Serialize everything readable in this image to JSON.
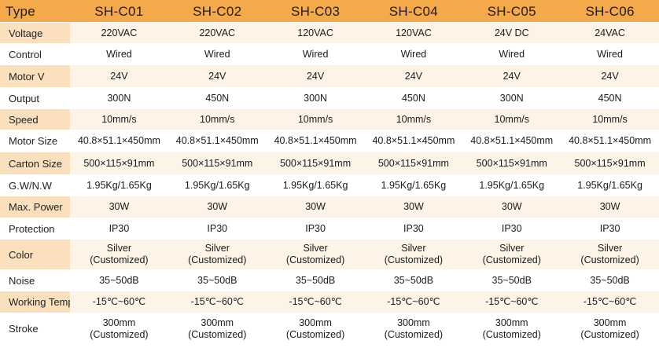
{
  "header": {
    "label": "Type",
    "models": [
      "SH-C01",
      "SH-C02",
      "SH-C03",
      "SH-C04",
      "SH-C05",
      "SH-C06"
    ]
  },
  "rows": [
    {
      "label": "Voltage",
      "values": [
        [
          "220VAC"
        ],
        [
          "220VAC"
        ],
        [
          "120VAC"
        ],
        [
          "120VAC"
        ],
        [
          "24V DC"
        ],
        [
          "24VAC"
        ]
      ]
    },
    {
      "label": "Control",
      "values": [
        [
          "Wired"
        ],
        [
          "Wired"
        ],
        [
          "Wired"
        ],
        [
          "Wired"
        ],
        [
          "Wired"
        ],
        [
          "Wired"
        ]
      ]
    },
    {
      "label": "Motor V",
      "values": [
        [
          "24V"
        ],
        [
          "24V"
        ],
        [
          "24V"
        ],
        [
          "24V"
        ],
        [
          "24V"
        ],
        [
          "24V"
        ]
      ]
    },
    {
      "label": "Output",
      "values": [
        [
          "300N"
        ],
        [
          "450N"
        ],
        [
          "300N"
        ],
        [
          "450N"
        ],
        [
          "300N"
        ],
        [
          "450N"
        ]
      ]
    },
    {
      "label": "Speed",
      "values": [
        [
          "10mm/s"
        ],
        [
          "10mm/s"
        ],
        [
          "10mm/s"
        ],
        [
          "10mm/s"
        ],
        [
          "10mm/s"
        ],
        [
          "10mm/s"
        ]
      ]
    },
    {
      "label": "Motor Size",
      "values": [
        [
          "40.8×51.1×450mm"
        ],
        [
          "40.8×51.1×450mm"
        ],
        [
          "40.8×51.1×450mm"
        ],
        [
          "40.8×51.1×450mm"
        ],
        [
          "40.8×51.1×450mm"
        ],
        [
          "40.8×51.1×450mm"
        ]
      ]
    },
    {
      "label": "Carton Size",
      "values": [
        [
          "500×115×91mm"
        ],
        [
          "500×115×91mm"
        ],
        [
          "500×115×91mm"
        ],
        [
          "500×115×91mm"
        ],
        [
          "500×115×91mm"
        ],
        [
          "500×115×91mm"
        ]
      ]
    },
    {
      "label": "G.W/N.W",
      "values": [
        [
          "1.95Kg/1.65Kg"
        ],
        [
          "1.95Kg/1.65Kg"
        ],
        [
          "1.95Kg/1.65Kg"
        ],
        [
          "1.95Kg/1.65Kg"
        ],
        [
          "1.95Kg/1.65Kg"
        ],
        [
          "1.95Kg/1.65Kg"
        ]
      ]
    },
    {
      "label": "Max. Power",
      "values": [
        [
          "30W"
        ],
        [
          "30W"
        ],
        [
          "30W"
        ],
        [
          "30W"
        ],
        [
          "30W"
        ],
        [
          "30W"
        ]
      ]
    },
    {
      "label": "Protection",
      "values": [
        [
          "IP30"
        ],
        [
          "IP30"
        ],
        [
          "IP30"
        ],
        [
          "IP30"
        ],
        [
          "IP30"
        ],
        [
          "IP30"
        ]
      ]
    },
    {
      "label": "Color",
      "values": [
        [
          "Silver",
          "(Customized)"
        ],
        [
          "Silver",
          "(Customized)"
        ],
        [
          "Silver",
          "(Customized)"
        ],
        [
          "Silver",
          "(Customized)"
        ],
        [
          "Silver",
          "(Customized)"
        ],
        [
          "Silver",
          "(Customized)"
        ]
      ]
    },
    {
      "label": "Noise",
      "values": [
        [
          "35~50dB"
        ],
        [
          "35~50dB"
        ],
        [
          "35~50dB"
        ],
        [
          "35~50dB"
        ],
        [
          "35~50dB"
        ],
        [
          "35~50dB"
        ]
      ]
    },
    {
      "label": "Working Temp",
      "values": [
        [
          "-15℃~60℃"
        ],
        [
          "-15℃~60℃"
        ],
        [
          "-15℃~60℃"
        ],
        [
          "-15℃~60℃"
        ],
        [
          "-15℃~60℃"
        ],
        [
          "-15℃~60℃"
        ]
      ]
    },
    {
      "label": "Stroke",
      "values": [
        [
          "300mm",
          "(Customized)"
        ],
        [
          "300mm",
          "(Customized)"
        ],
        [
          "300mm",
          "(Customized)"
        ],
        [
          "300mm",
          "(Customized)"
        ],
        [
          "300mm",
          "(Customized)"
        ],
        [
          "300mm",
          "(Customized)"
        ]
      ]
    }
  ],
  "colors": {
    "header_bg": "#f4a94a",
    "label_band_bg": "#fbe0be",
    "row_band_bg": "#fdf3e6",
    "row_plain_bg": "#ffffff"
  }
}
